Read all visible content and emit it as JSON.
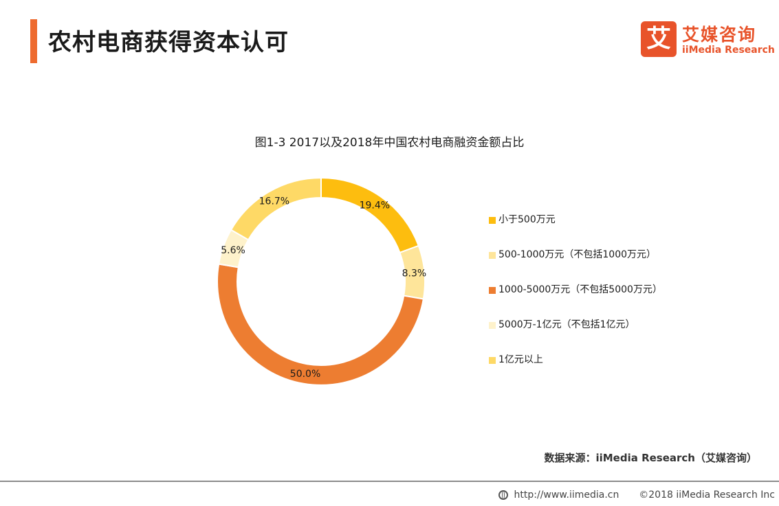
{
  "header": {
    "title": "农村电商获得资本认可",
    "brand_mark": "艾",
    "brand_cn": "艾媒咨询",
    "brand_en": "iiMedia Research"
  },
  "colors": {
    "accent": "#ee6b2f",
    "brand": "#e8532a"
  },
  "chart_data": {
    "type": "pie",
    "donut": true,
    "title": "图1-3 2017以及2018年中国农村电商融资金额占比",
    "legend_position": "right",
    "categories": [
      "小于500万元",
      "500-1000万元（不包括1000万元）",
      "1000-5000万元（不包括5000万元）",
      "5000万-1亿元（不包括1亿元）",
      "1亿元以上"
    ],
    "values": [
      19.4,
      8.3,
      50.0,
      5.6,
      16.7
    ],
    "labels": [
      "19.4%",
      "8.3%",
      "50.0%",
      "5.6%",
      "16.7%"
    ],
    "colors": [
      "#fdbd0f",
      "#fee59a",
      "#ed7d31",
      "#fef2cb",
      "#fed966"
    ]
  },
  "source": "数据来源：iiMedia Research（艾媒咨询）",
  "footer": {
    "url": "http://www.iimedia.cn",
    "copyright": "©2018  iiMedia Research Inc"
  }
}
